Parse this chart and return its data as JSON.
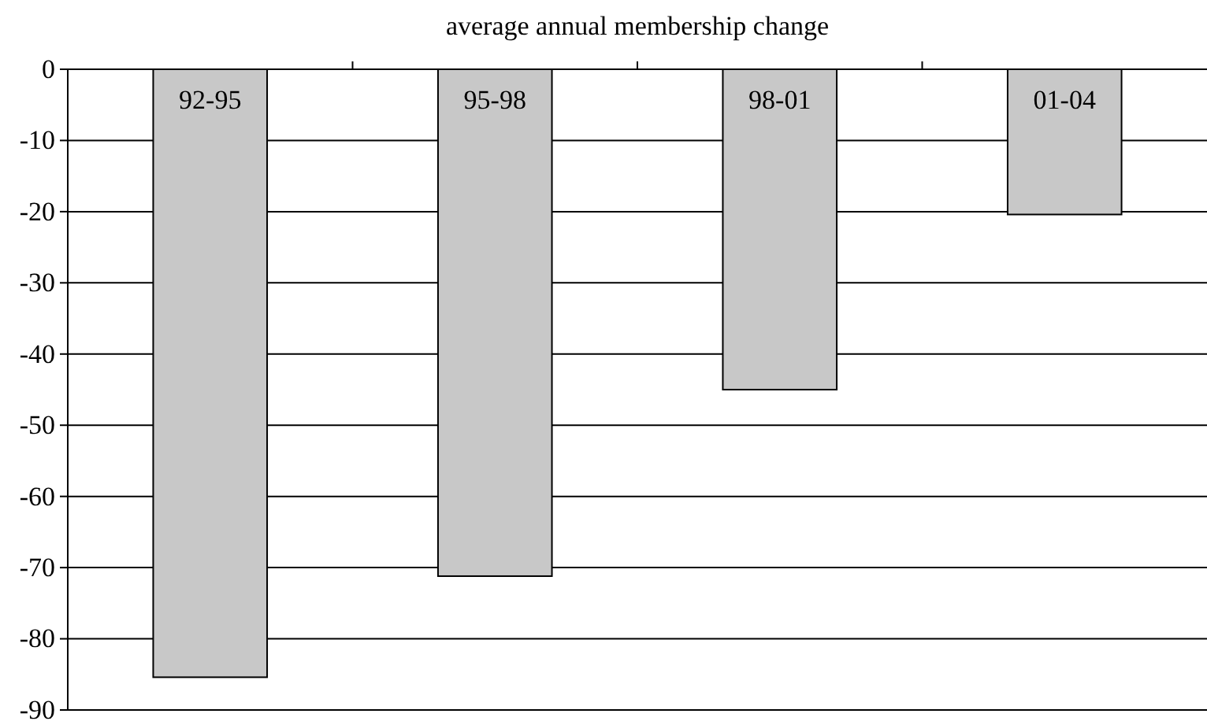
{
  "chart_data": {
    "type": "bar",
    "title": "average annual membership change",
    "categories": [
      "92-95",
      "95-98",
      "98-01",
      "01-04"
    ],
    "values": [
      -85.4,
      -71.2,
      -45,
      -20.4
    ],
    "color": "#c8c8c8",
    "ylim": [
      -90,
      0
    ],
    "yticks": [
      0,
      -10,
      -20,
      -30,
      -40,
      -50,
      -60,
      -70,
      -80,
      -90
    ],
    "grid": "y"
  }
}
